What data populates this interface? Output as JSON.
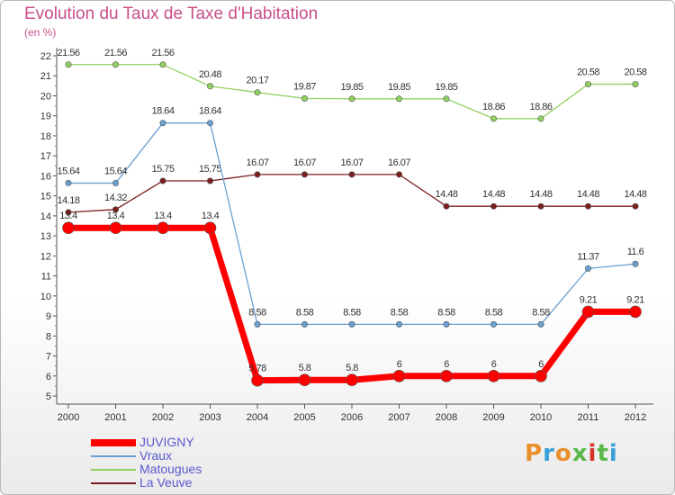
{
  "header": {
    "title": "Evolution du Taux de Taxe d'Habitation",
    "unit": "(en %)"
  },
  "logo": {
    "text": "Proxiti",
    "colors": [
      "#e9902d",
      "#3aa0d8",
      "#e9902d",
      "#5ab848",
      "#d8352a",
      "#5ab848",
      "#3aa0d8"
    ]
  },
  "chart_data": {
    "type": "line",
    "title": "Evolution du Taux de Taxe d'Habitation",
    "ylabel": "(en %)",
    "xlabel": "",
    "ylim": [
      5,
      22
    ],
    "grid": false,
    "legend_position": "bottom-left",
    "categories": [
      "2000",
      "2001",
      "2002",
      "2003",
      "2004",
      "2005",
      "2006",
      "2007",
      "2008",
      "2009",
      "2010",
      "2011",
      "2012"
    ],
    "yticks": [
      "5",
      "6",
      "7",
      "8",
      "9",
      "10",
      "11",
      "12",
      "13",
      "14",
      "15",
      "16",
      "17",
      "18",
      "19",
      "20",
      "21",
      "22"
    ],
    "series": [
      {
        "name": "La Veuve",
        "color": "#7a1f1f",
        "values": [
          14.18,
          14.32,
          15.75,
          15.75,
          16.07,
          16.07,
          16.07,
          16.07,
          14.48,
          14.48,
          14.48,
          14.48,
          14.48
        ],
        "labels": [
          "14.18",
          "14.32",
          "15.75",
          "15.75",
          "16.07",
          "16.07",
          "16.07",
          "16.07",
          "14.48",
          "14.48",
          "14.48",
          "14.48",
          "14.48"
        ]
      },
      {
        "name": "Matougues",
        "color": "#90d060",
        "values": [
          21.56,
          21.56,
          21.56,
          20.48,
          20.17,
          19.87,
          19.85,
          19.85,
          19.85,
          18.86,
          18.86,
          20.58,
          20.58
        ],
        "labels": [
          "21.56",
          "21.56",
          "21.56",
          "20.48",
          "20.17",
          "19.87",
          "19.85",
          "19.85",
          "19.85",
          "18.86",
          "18.86",
          "20.58",
          "20.58"
        ]
      },
      {
        "name": "Vraux",
        "color": "#6aa0d0",
        "values": [
          15.64,
          15.64,
          18.64,
          18.64,
          8.58,
          8.58,
          8.58,
          8.58,
          8.58,
          8.58,
          8.58,
          11.37,
          11.6
        ],
        "labels": [
          "15.64",
          "15.64",
          "18.64",
          "18.64",
          "8.58",
          "8.58",
          "8.58",
          "8.58",
          "8.58",
          "8.58",
          "8.58",
          "11.37",
          "11.6"
        ]
      },
      {
        "name": "JUVIGNY",
        "color": "#ff0000",
        "values": [
          13.4,
          13.4,
          13.4,
          13.4,
          5.78,
          5.8,
          5.8,
          6,
          6,
          6,
          6,
          9.21,
          9.21
        ],
        "labels": [
          "13.4",
          "13.4",
          "13.4",
          "13.4",
          "5.78",
          "5.8",
          "5.8",
          "6",
          "6",
          "6",
          "6",
          "9.21",
          "9.21"
        ]
      }
    ],
    "legend": [
      "JUVIGNY",
      "Vraux",
      "Matougues",
      "La Veuve"
    ]
  }
}
